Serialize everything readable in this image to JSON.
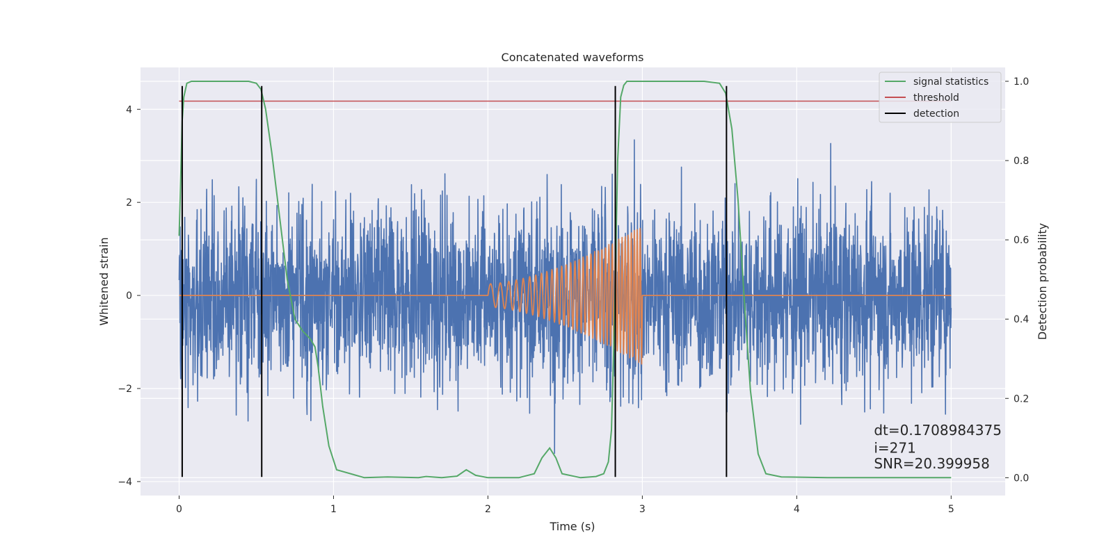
{
  "chart_data": {
    "type": "line",
    "title": "Concatenated waveforms",
    "xlabel": "Time (s)",
    "ylabel": "Whitened strain",
    "ylabel_right": "Detection probability",
    "xlim": [
      -0.25,
      5.35
    ],
    "ylim": [
      -4.3,
      4.9
    ],
    "ylim_right": [
      -0.045,
      1.035
    ],
    "x_ticks": [
      0,
      1,
      2,
      3,
      4,
      5
    ],
    "x_tick_labels": [
      "0",
      "1",
      "2",
      "3",
      "4",
      "5"
    ],
    "y_ticks": [
      -4,
      -2,
      0,
      2,
      4
    ],
    "y_tick_labels": [
      "−4",
      "−2",
      "0",
      "2",
      "4"
    ],
    "y_right_ticks": [
      0.0,
      0.2,
      0.4,
      0.6,
      0.8,
      1.0
    ],
    "y_right_tick_labels": [
      "0.0",
      "0.2",
      "0.4",
      "0.6",
      "0.8",
      "1.0"
    ],
    "grid": true,
    "legend": {
      "position": "upper right",
      "entries": [
        {
          "label": "signal statistics",
          "color": "#55a868"
        },
        {
          "label": "threshold",
          "color": "#c44e52"
        },
        {
          "label": "detection",
          "color": "#000000"
        }
      ]
    },
    "series": [
      {
        "name": "whitened strain (noise)",
        "axis": "left",
        "color": "#4c72b0",
        "x_range": [
          0,
          5
        ],
        "amplitude_std": 1.0,
        "min": -3.9,
        "max": 4.5
      },
      {
        "name": "injected waveform",
        "axis": "left",
        "color": "#dd8452",
        "x_range": [
          0,
          5
        ],
        "chirp_start": 2.0,
        "chirp_end": 3.0,
        "amplitude_start": 0.25,
        "amplitude_end": 1.5
      },
      {
        "name": "signal statistics",
        "axis": "right",
        "color": "#55a868",
        "x": [
          0,
          0.01,
          0.02,
          0.03,
          0.05,
          0.08,
          0.12,
          0.3,
          0.45,
          0.5,
          0.53,
          0.56,
          0.6,
          0.65,
          0.7,
          0.75,
          0.8,
          0.85,
          0.88,
          0.9,
          0.93,
          0.97,
          1.02,
          1.2,
          1.35,
          1.55,
          1.6,
          1.7,
          1.8,
          1.86,
          1.92,
          2.0,
          2.2,
          2.3,
          2.35,
          2.4,
          2.44,
          2.48,
          2.6,
          2.7,
          2.75,
          2.78,
          2.8,
          2.82,
          2.84,
          2.86,
          2.88,
          2.9,
          2.95,
          3.0,
          3.4,
          3.5,
          3.54,
          3.58,
          3.62,
          3.66,
          3.7,
          3.75,
          3.8,
          3.9,
          4.2,
          5.0
        ],
        "values": [
          0.61,
          0.75,
          0.9,
          0.96,
          0.995,
          1.0,
          1.0,
          1.0,
          1.0,
          0.995,
          0.98,
          0.93,
          0.82,
          0.66,
          0.5,
          0.4,
          0.37,
          0.35,
          0.33,
          0.28,
          0.18,
          0.08,
          0.02,
          0.0,
          0.002,
          0.0,
          0.003,
          0.0,
          0.004,
          0.02,
          0.006,
          0.0,
          0.0,
          0.01,
          0.05,
          0.075,
          0.05,
          0.01,
          0.0,
          0.003,
          0.01,
          0.04,
          0.12,
          0.4,
          0.8,
          0.96,
          0.99,
          1.0,
          1.0,
          1.0,
          1.0,
          0.995,
          0.97,
          0.88,
          0.7,
          0.45,
          0.22,
          0.06,
          0.01,
          0.002,
          0.0,
          0.0
        ]
      },
      {
        "name": "threshold",
        "axis": "right",
        "color": "#c44e52",
        "x": [
          0,
          5
        ],
        "values": [
          0.95,
          0.95
        ]
      }
    ],
    "detections": {
      "color": "#000000",
      "x": [
        0.02,
        0.535,
        2.825,
        3.545
      ],
      "y_min": -3.9,
      "y_max": 4.5
    },
    "annotations": [
      {
        "text": "dt=0.1708984375",
        "x": 4.5,
        "y": -3.0
      },
      {
        "text": " i=271",
        "x": 4.5,
        "y": -3.38
      },
      {
        "text": "SNR=20.399958",
        "x": 4.5,
        "y": -3.72
      }
    ]
  }
}
